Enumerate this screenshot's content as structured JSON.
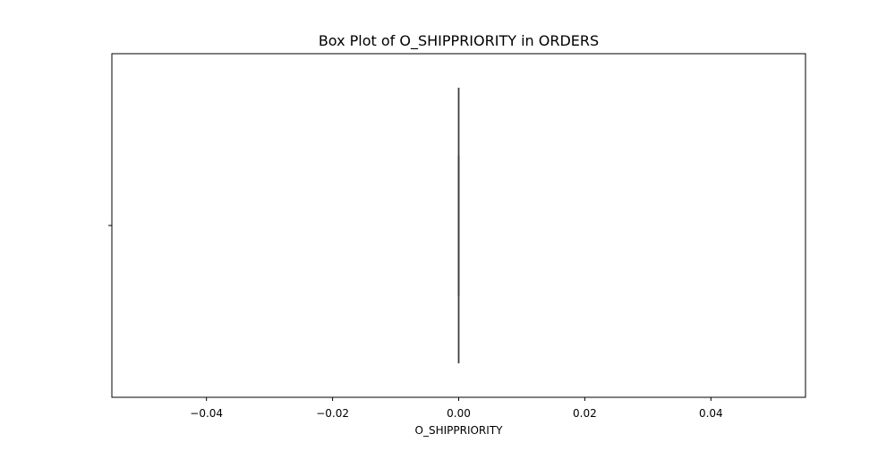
{
  "chart_data": {
    "type": "box",
    "title": "Box Plot of O_SHIPPRIORITY in ORDERS",
    "xlabel": "O_SHIPPRIORITY",
    "ylabel": "",
    "orientation": "horizontal",
    "xlim": [
      -0.055,
      0.055
    ],
    "xticks": [
      -0.04,
      -0.02,
      0.0,
      0.02,
      0.04
    ],
    "xtick_labels": [
      "−0.04",
      "−0.02",
      "0.00",
      "0.02",
      "0.04"
    ],
    "grid": false,
    "series": [
      {
        "whisker_low": 0.0,
        "q1": 0.0,
        "median": 0.0,
        "q3": 0.0,
        "whisker_high": 0.0
      }
    ],
    "colors": {
      "box": "#3a3a3a",
      "whisker": "#3a3a3a",
      "frame": "#000000"
    }
  }
}
